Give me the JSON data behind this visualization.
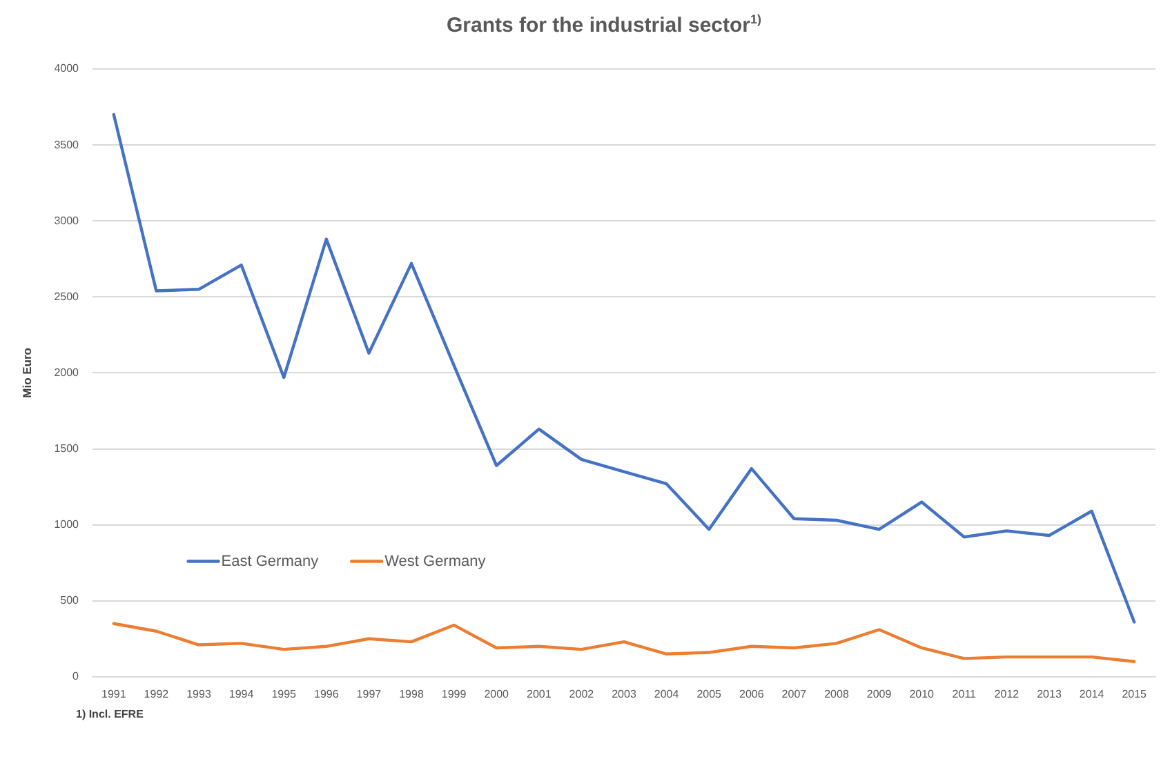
{
  "chart_data": {
    "type": "line",
    "title": "Grants for the industrial sector$^{1)}$",
    "ylabel": "Mio Euro",
    "annotations": [
      "1) Incl. EFRE"
    ],
    "categories": [
      "1991",
      "1992",
      "1993",
      "1994",
      "1995",
      "1996",
      "1997",
      "1998",
      "1999",
      "2000",
      "2001",
      "2002",
      "2003",
      "2004",
      "2005",
      "2006",
      "2007",
      "2008",
      "2009",
      "2010",
      "2011",
      "2012",
      "2013",
      "2014",
      "2015"
    ],
    "series": [
      {
        "name": "East Germany",
        "color": "#4472c4",
        "values": [
          3700,
          2540,
          2550,
          2710,
          1970,
          2880,
          2130,
          2720,
          2050,
          1390,
          1630,
          1430,
          1350,
          1270,
          970,
          1370,
          1040,
          1030,
          970,
          1150,
          920,
          960,
          930,
          1090,
          360
        ]
      },
      {
        "name": "West Germany",
        "color": "#ed7d31",
        "values": [
          350,
          300,
          210,
          220,
          180,
          200,
          250,
          230,
          340,
          190,
          200,
          180,
          230,
          150,
          160,
          200,
          190,
          220,
          310,
          190,
          120,
          130,
          130,
          130,
          100
        ]
      }
    ],
    "ylim": [
      0,
      4000
    ],
    "yticks": [
      0,
      500,
      1000,
      1500,
      2000,
      2500,
      3000,
      3500,
      4000
    ],
    "grid": "y",
    "legend": "bottom left"
  }
}
